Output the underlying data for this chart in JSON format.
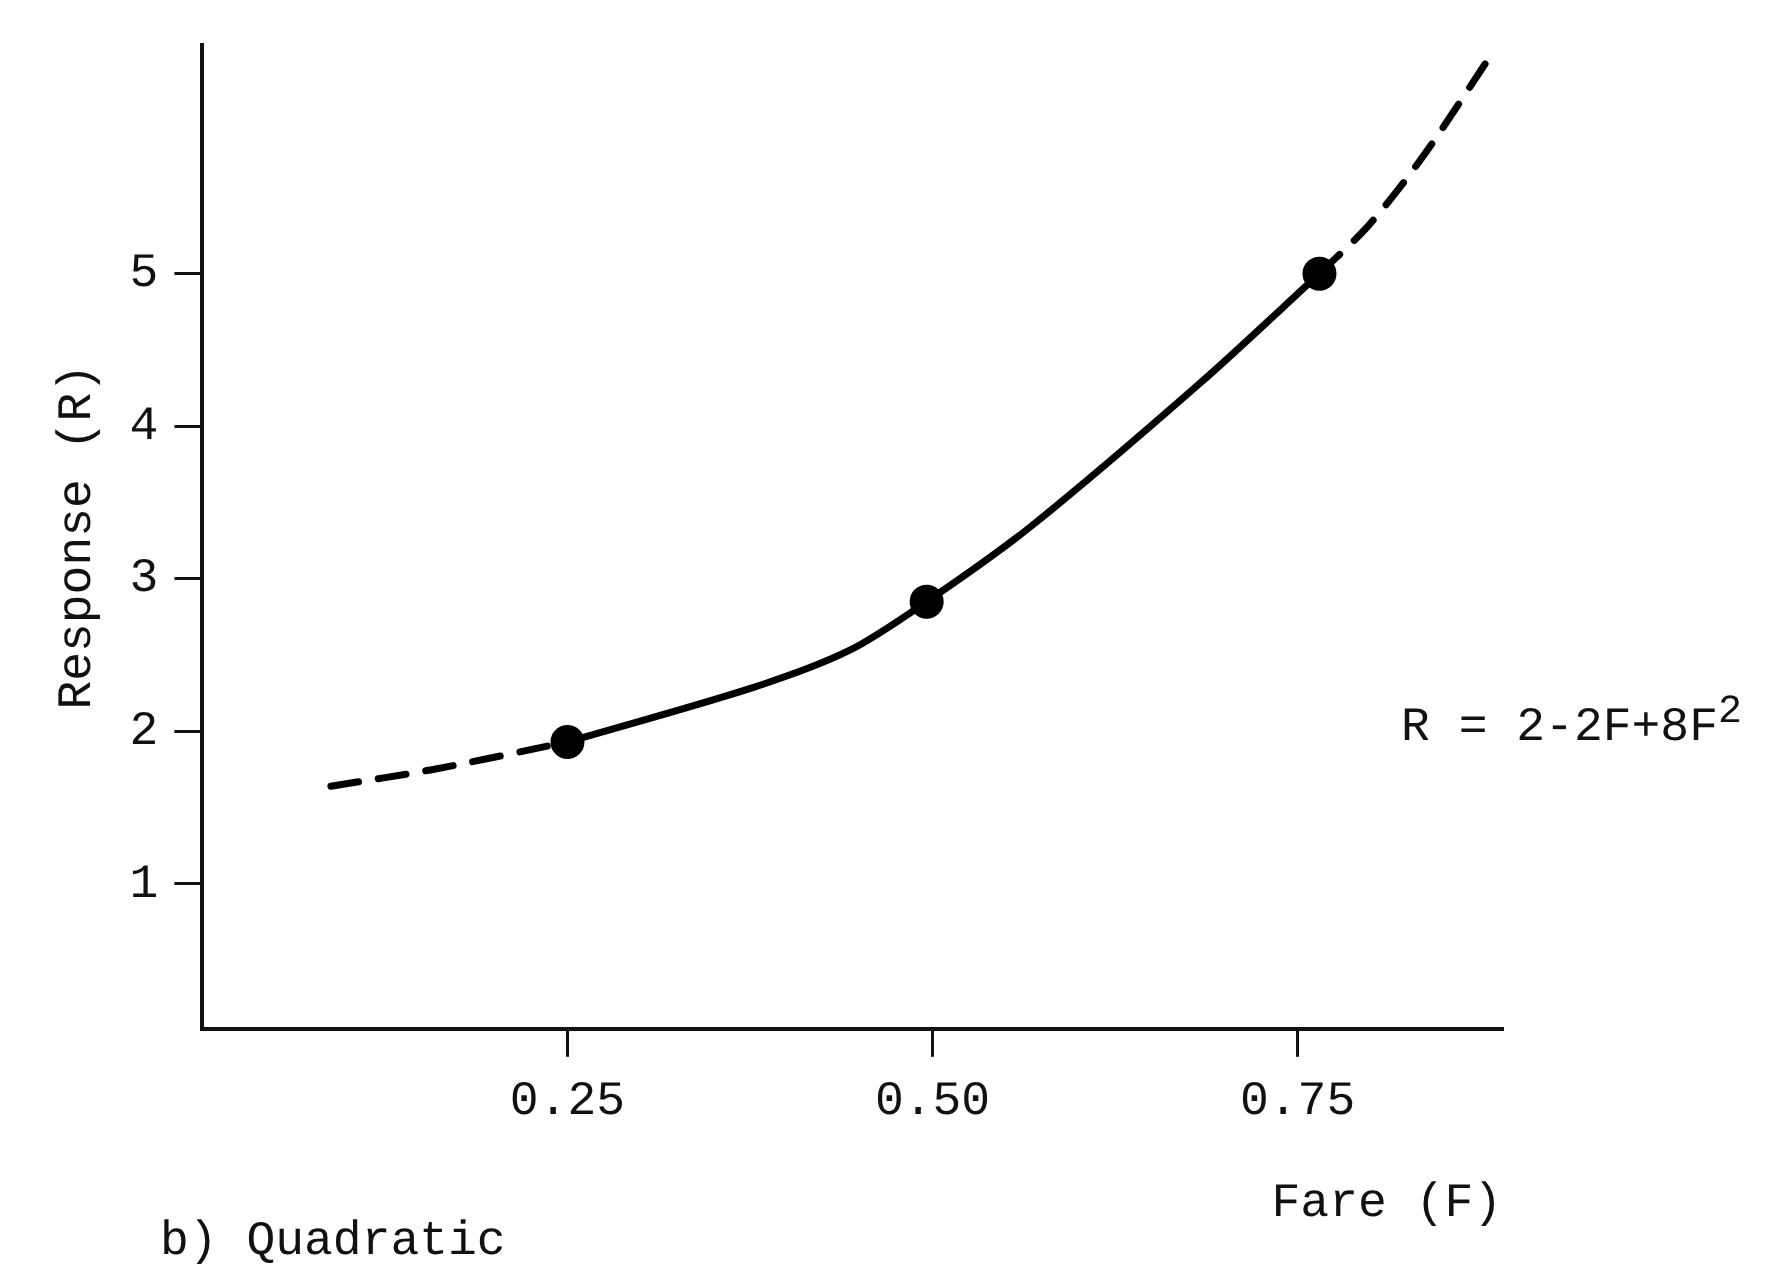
{
  "chart_data": {
    "type": "line",
    "xlabel": "Fare (F)",
    "ylabel": "Response (R)",
    "xlim": [
      0,
      0.89
    ],
    "ylim": [
      0.05,
      6.5
    ],
    "xticks": [
      0.25,
      {
        "value": 0.5,
        "label": "0.50"
      },
      0.75
    ],
    "yticks": [
      1,
      2,
      3,
      4,
      5
    ],
    "grid": false,
    "legend": false,
    "series": [
      {
        "type": "line",
        "color": "#000000",
        "line_style": "dashed",
        "marker": "none",
        "x": [
          0.088,
          0.158,
          0.25
        ],
        "values": [
          1.64,
          1.75,
          1.93
        ]
      },
      {
        "type": "line",
        "color": "#000000",
        "line_style": "solid",
        "marker": "none",
        "x": [
          0.25,
          0.378,
          0.443,
          0.496,
          0.567,
          0.683,
          0.765
        ],
        "values": [
          1.93,
          2.29,
          2.53,
          2.85,
          3.34,
          4.28,
          5.0
        ]
      },
      {
        "type": "line",
        "color": "#000000",
        "line_style": "dashed",
        "marker": "none",
        "x": [
          0.765,
          0.799,
          0.836,
          0.883
        ],
        "values": [
          5.0,
          5.32,
          5.77,
          6.44
        ]
      },
      {
        "type": "scatter",
        "color": "#000000",
        "marker": "circle",
        "x": [
          0.25,
          0.496,
          0.765
        ],
        "values": [
          1.93,
          2.85,
          5.0
        ]
      }
    ],
    "annotations": [
      "R = 2-2F+8F$^{2}$",
      "b) Quadratic"
    ]
  }
}
